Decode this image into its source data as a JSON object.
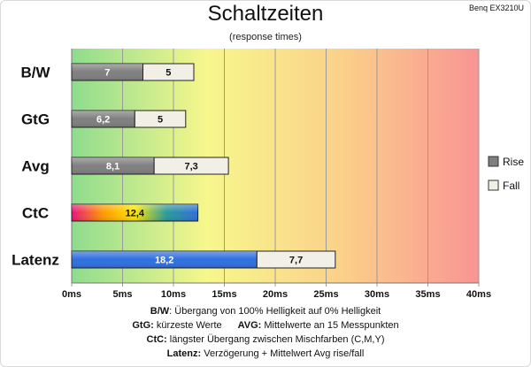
{
  "title": "Schaltzeiten",
  "subtitle": "(response times)",
  "model": "Benq EX3210U",
  "chart_data": {
    "type": "bar",
    "orientation": "horizontal",
    "stacked": true,
    "categories": [
      "B/W",
      "GtG",
      "Avg",
      "CtC",
      "Latenz"
    ],
    "series": [
      {
        "name": "Rise",
        "values": [
          7,
          6.2,
          8.1,
          12.4,
          18.2
        ],
        "labels": [
          "7",
          "6,2",
          "8,1",
          "12,4",
          "18,2"
        ]
      },
      {
        "name": "Fall",
        "values": [
          5,
          5,
          7.3,
          null,
          7.7
        ],
        "labels": [
          "5",
          "5",
          "7,3",
          "",
          "7,7"
        ]
      }
    ],
    "xlim": [
      0,
      40
    ],
    "xticks": [
      "0ms",
      "5ms",
      "10ms",
      "15ms",
      "20ms",
      "25ms",
      "30ms",
      "35ms",
      "40ms"
    ],
    "grid": true,
    "legend_position": "right",
    "background_gradient": [
      "#8edc8e",
      "#f7f78c",
      "#fbd08a",
      "#f99494"
    ],
    "colors": {
      "rise": "#7f7f7f",
      "fall": "#f2f0e6",
      "ctc_gradient": [
        "#e8147c",
        "#ff9900",
        "#ffe600",
        "#2a9a9a",
        "#2f6fd6"
      ],
      "latenz_rise": "#2f6fe0"
    }
  },
  "notes": [
    [
      {
        "b": "B/W",
        "t": ":  Übergang von 100% Helligkeit auf 0% Helligkeit"
      }
    ],
    [
      {
        "b": "GtG:",
        "t": " kürzeste  Werte"
      },
      {
        "b": "AVG:",
        "t": " Mittelwerte  an 15 Messpunkten"
      }
    ],
    [
      {
        "b": "CtC:",
        "t": " längster Übergang  zwischen Mischfarben  (C,M,Y)"
      }
    ],
    [
      {
        "b": "Latenz:",
        "t": " Verzögerung  + Mittelwert  Avg rise/fall"
      }
    ]
  ]
}
